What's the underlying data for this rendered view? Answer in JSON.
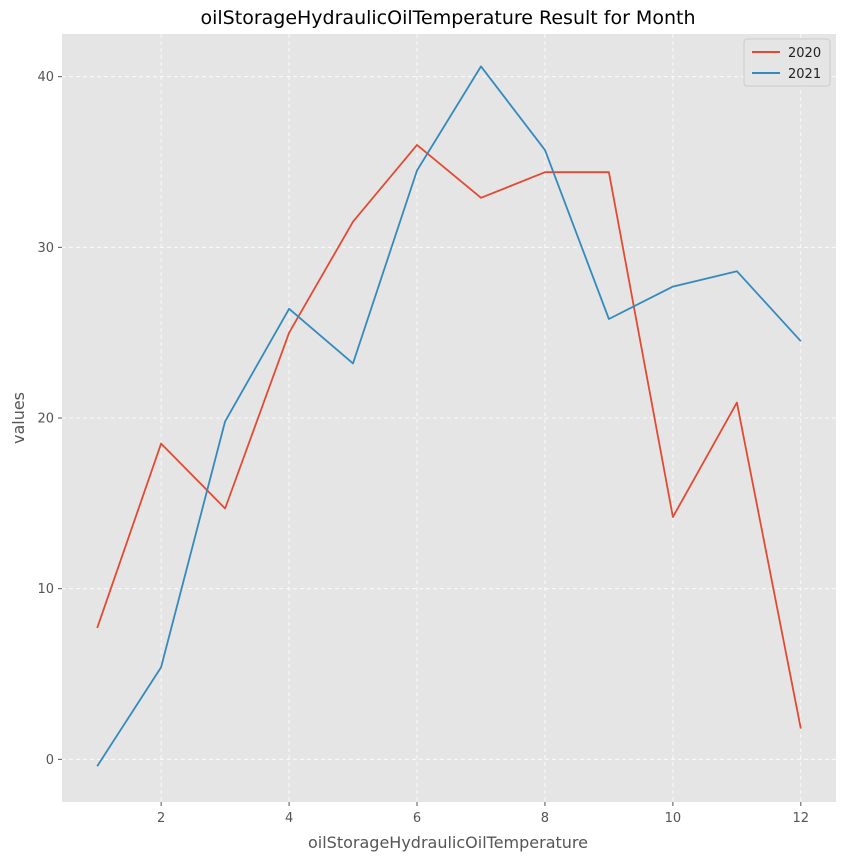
{
  "chart_data": {
    "type": "line",
    "title": "oilStorageHydraulicOilTemperature Result for Month",
    "xlabel": "oilStorageHydraulicOilTemperature",
    "ylabel": "values",
    "x": [
      1,
      2,
      3,
      4,
      5,
      6,
      7,
      8,
      9,
      10,
      11,
      12
    ],
    "xlim": [
      0.45,
      12.55
    ],
    "ylim": [
      -2.5,
      42.5
    ],
    "xticks": [
      2,
      4,
      6,
      8,
      10,
      12
    ],
    "yticks": [
      0,
      10,
      20,
      30,
      40
    ],
    "grid": true,
    "legend_position": "top-right",
    "series": [
      {
        "name": "2020",
        "color": "#E24A33",
        "values": [
          7.7,
          18.5,
          14.7,
          25.0,
          31.5,
          36.0,
          32.9,
          34.4,
          34.4,
          14.2,
          20.9,
          1.8
        ]
      },
      {
        "name": "2021",
        "color": "#348ABD",
        "values": [
          -0.4,
          5.4,
          19.8,
          26.4,
          23.2,
          34.5,
          40.6,
          35.7,
          25.8,
          27.7,
          28.6,
          24.5
        ]
      }
    ],
    "plot_background": "#E5E5E5",
    "grid_color": "#FFFFFF"
  }
}
